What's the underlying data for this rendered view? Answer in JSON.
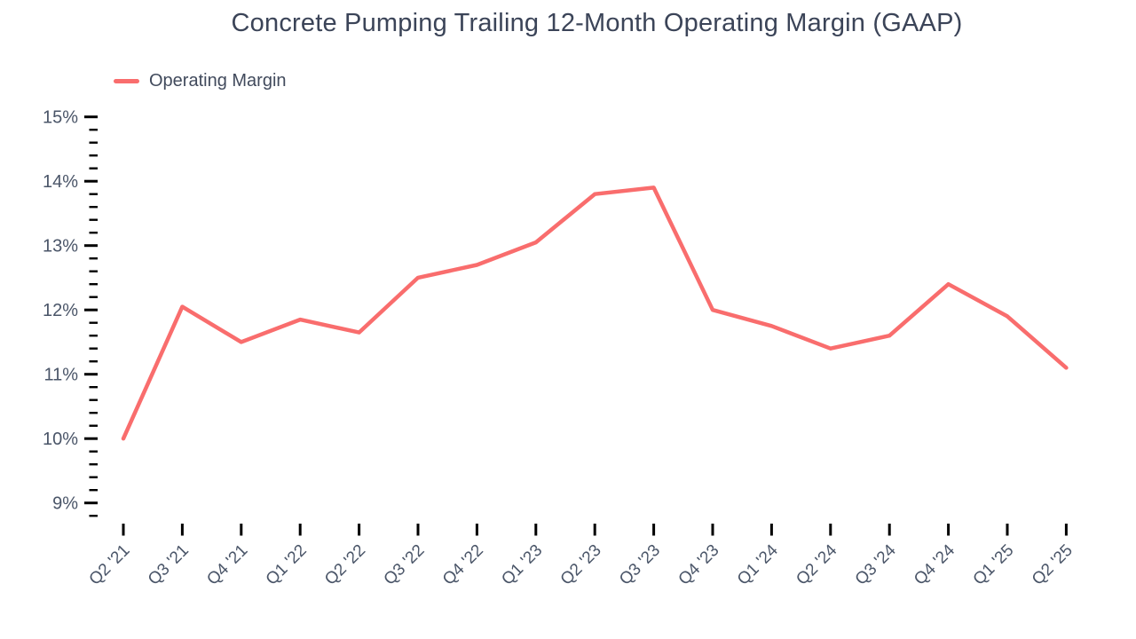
{
  "header": {
    "title": "Concrete Pumping Trailing 12-Month Operating Margin (GAAP)"
  },
  "legend": {
    "items": [
      {
        "label": "Operating Margin",
        "color": "#f96d6d"
      }
    ]
  },
  "chart_data": {
    "type": "line",
    "title": "Concrete Pumping Trailing 12-Month Operating Margin (GAAP)",
    "categories": [
      "Q2 '21",
      "Q3 '21",
      "Q4 '21",
      "Q1 '22",
      "Q2 '22",
      "Q3 '22",
      "Q4 '22",
      "Q1 '23",
      "Q2 '23",
      "Q3 '23",
      "Q4 '23",
      "Q1 '24",
      "Q2 '24",
      "Q3 '24",
      "Q4 '24",
      "Q1 '25",
      "Q2 '25"
    ],
    "series": [
      {
        "name": "Operating Margin",
        "color": "#f96d6d",
        "values": [
          10.0,
          12.05,
          11.5,
          11.85,
          11.65,
          12.5,
          12.7,
          13.05,
          13.8,
          13.9,
          12.0,
          11.75,
          11.4,
          11.6,
          12.4,
          11.9,
          11.1
        ]
      }
    ],
    "unit": "%",
    "yticks": [
      9,
      10,
      11,
      12,
      13,
      14,
      15
    ],
    "ytick_labels": [
      "9%",
      "10%",
      "11%",
      "12%",
      "13%",
      "14%",
      "15%"
    ],
    "ylim": [
      8.8,
      15
    ],
    "y_minor_step": 0.2,
    "grid": false,
    "legend_position": "top-left",
    "colors": {
      "line": "#f96d6d",
      "title": "#3b4458",
      "axis_labels": "#4a5568",
      "ticks": "#000000",
      "background": "#ffffff"
    }
  }
}
